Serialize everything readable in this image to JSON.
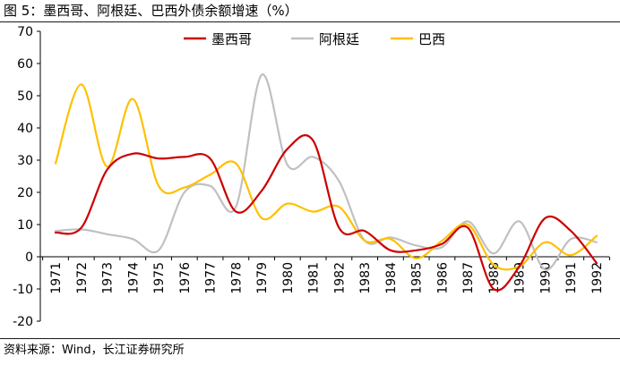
{
  "title": "图 5：墨西哥、阿根廷、巴西外债余额增速（%）",
  "source": "资料来源：Wind，长江证券研究所",
  "chart_data": {
    "type": "line",
    "x": [
      "1971",
      "1972",
      "1973",
      "1974",
      "1975",
      "1976",
      "1977",
      "1978",
      "1979",
      "1980",
      "1981",
      "1982",
      "1983",
      "1984",
      "1985",
      "1986",
      "1987",
      "1988",
      "1989",
      "1990",
      "1991",
      "1992"
    ],
    "ylim": [
      -20,
      70
    ],
    "yticks": [
      -20,
      -10,
      0,
      10,
      20,
      30,
      40,
      50,
      60,
      70
    ],
    "legend_position": "top-center",
    "grid": false,
    "series": [
      {
        "name": "墨西哥",
        "color": "#cc0000",
        "values": [
          7.5,
          9,
          27,
          32,
          30.5,
          31,
          30.5,
          14,
          20.5,
          33.5,
          36,
          9,
          8,
          2,
          2,
          4,
          9,
          -10,
          -3,
          12,
          8,
          -2
        ]
      },
      {
        "name": "阿根廷",
        "color": "#c0c0c0",
        "values": [
          8,
          8.5,
          7,
          5.5,
          2,
          20,
          22,
          15.5,
          56.5,
          28.5,
          31,
          23.5,
          5,
          6,
          3.5,
          3,
          11,
          1,
          11,
          -4,
          5.5,
          4.5
        ]
      },
      {
        "name": "巴西",
        "color": "#ffc000",
        "values": [
          29,
          53.5,
          28,
          49,
          22,
          21.5,
          25.5,
          29,
          12,
          16.5,
          14,
          15.5,
          5,
          5.5,
          -0.5,
          5,
          10,
          -2.5,
          -3,
          4.5,
          0.5,
          6.5
        ]
      }
    ]
  }
}
